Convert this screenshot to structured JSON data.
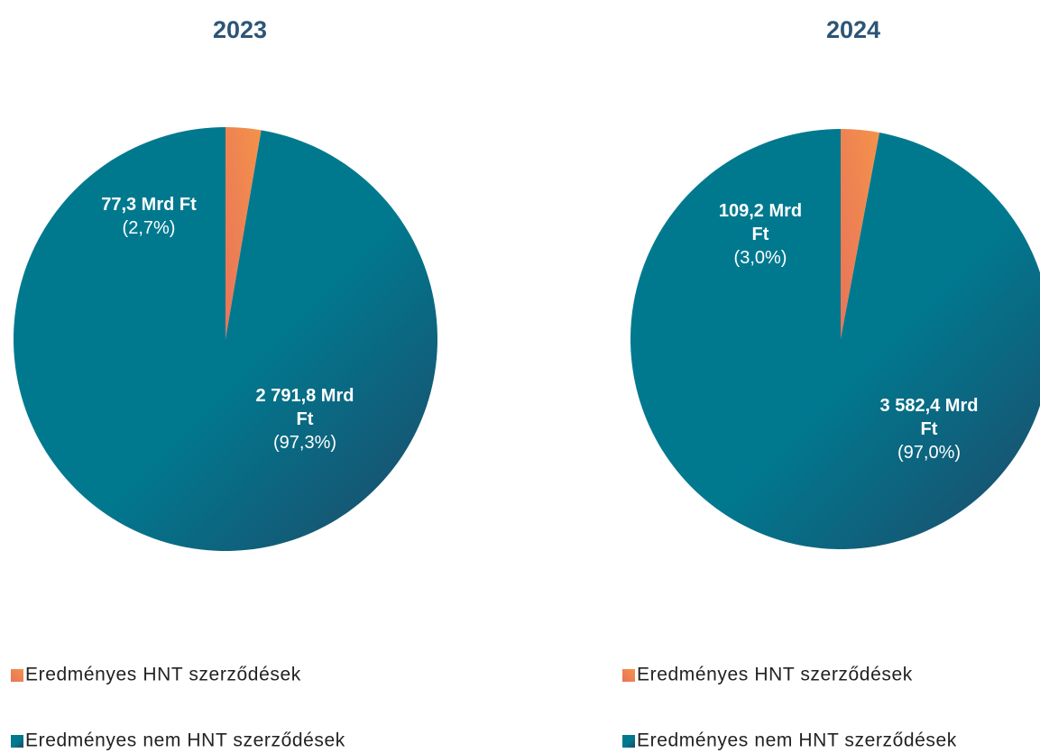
{
  "chart_data": [
    {
      "type": "pie",
      "title": "2023",
      "categories": [
        "Eredményes HNT szerződések",
        "Eredményes nem HNT szerződések"
      ],
      "values": [
        77.3,
        2791.8
      ],
      "value_labels": [
        "77,3 Mrd Ft",
        "2 791,8 Mrd Ft"
      ],
      "percents": [
        2.7,
        97.3
      ],
      "percent_labels": [
        "(2,7%)",
        "(97,3%)"
      ],
      "colors": [
        "#e8745a",
        "#00798f"
      ]
    },
    {
      "type": "pie",
      "title": "2024",
      "categories": [
        "Eredményes HNT szerződések",
        "Eredményes nem HNT szerződések"
      ],
      "values": [
        109.2,
        3582.4
      ],
      "value_labels": [
        "109,2 Mrd Ft",
        "3 582,4 Mrd Ft"
      ],
      "percents": [
        3.0,
        97.0
      ],
      "percent_labels": [
        "(3,0%)",
        "(97,0%)"
      ],
      "colors": [
        "#e8745a",
        "#00798f"
      ]
    }
  ]
}
